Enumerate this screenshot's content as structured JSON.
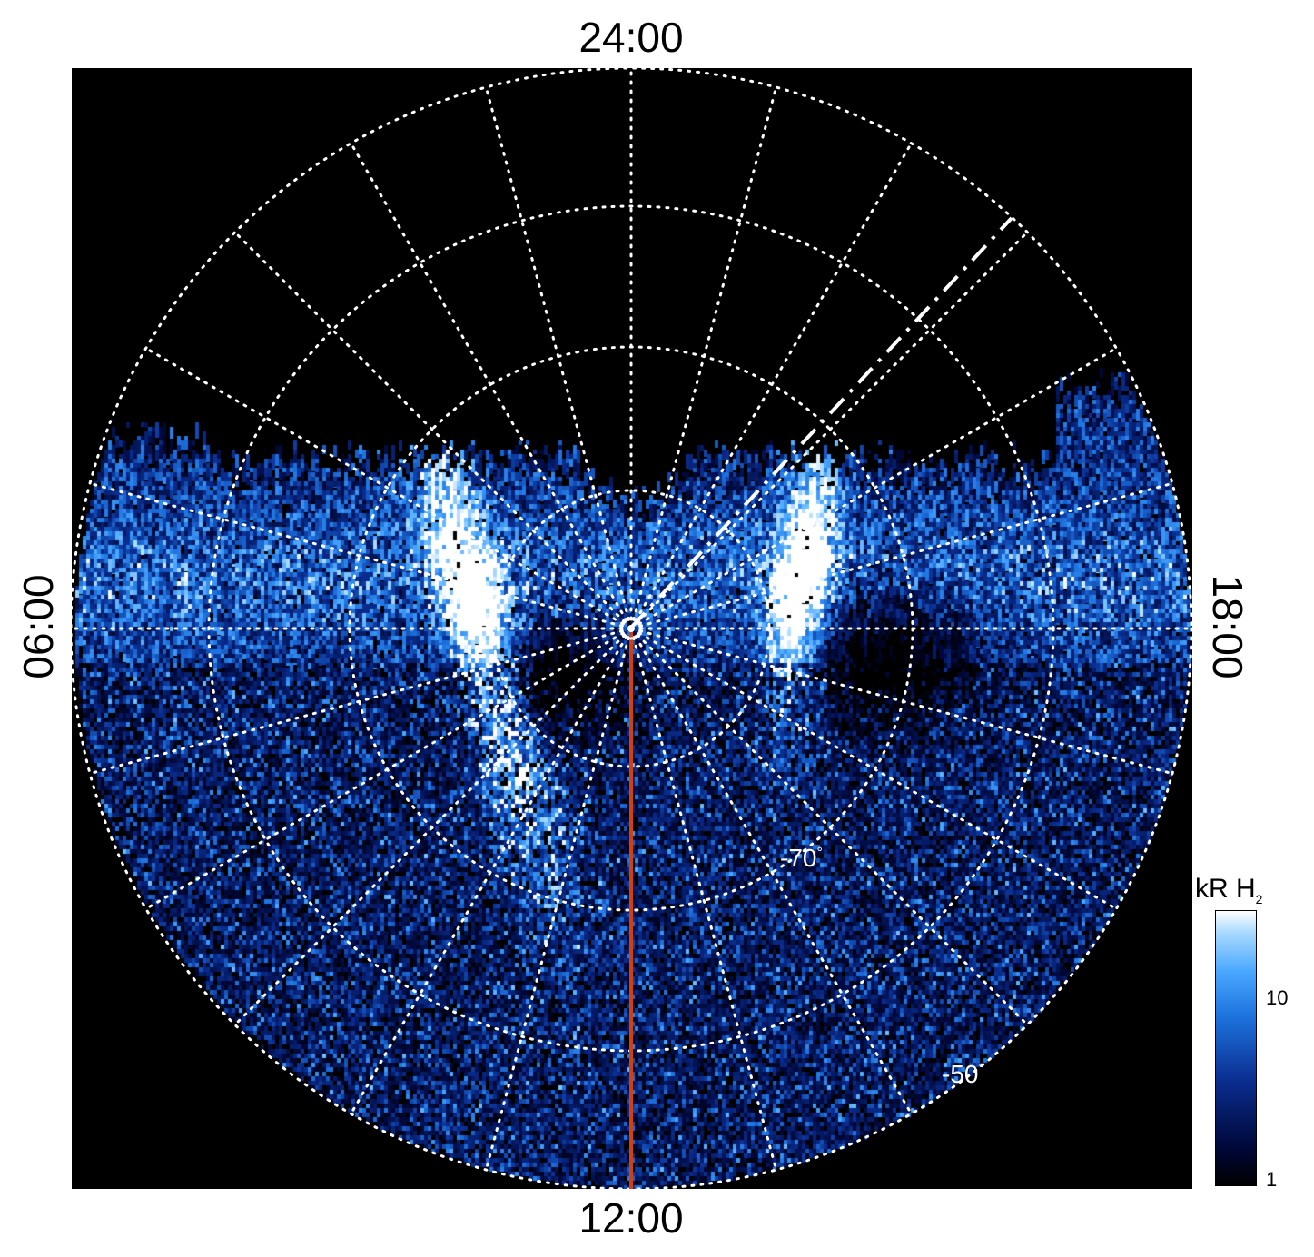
{
  "time_labels": {
    "top": "24:00",
    "bottom": "12:00",
    "left": "06:00",
    "right": "18:00"
  },
  "latitude_labels": [
    "-70",
    "-50"
  ],
  "degree_symbol": "°",
  "colorbar": {
    "title": "kR H",
    "title_subscript": "2",
    "ticks": [
      "1",
      "10"
    ],
    "scale": "log"
  },
  "colors": {
    "background": "#000000",
    "grid": "#ffffff",
    "emission_bright": "#ffffff",
    "emission_mid": "#1e7fff",
    "emission_low": "#00083a",
    "meridian_line": "#d04010"
  }
}
